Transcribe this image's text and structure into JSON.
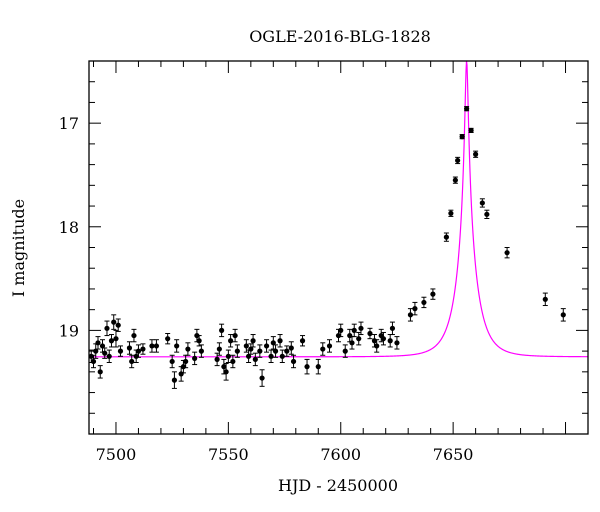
{
  "chart_data": {
    "type": "scatter",
    "title": "OGLE-2016-BLG-1828",
    "xlabel": "HJD - 2450000",
    "ylabel": "I magnitude",
    "xlim": [
      7488,
      7710
    ],
    "ylim": [
      20.0,
      16.4
    ],
    "y_inverted": true,
    "grid": false,
    "x_ticks": [
      7500,
      7550,
      7600,
      7650
    ],
    "y_ticks": [
      17,
      18,
      19
    ],
    "colors": {
      "points": "#000000",
      "model": "#ff00ff"
    },
    "series": [
      {
        "name": "",
        "points": [
          {
            "x": 7489,
            "y": 19.25,
            "err": 0.06
          },
          {
            "x": 7490,
            "y": 19.3,
            "err": 0.06
          },
          {
            "x": 7491,
            "y": 19.2,
            "err": 0.07
          },
          {
            "x": 7492,
            "y": 19.12,
            "err": 0.06
          },
          {
            "x": 7493,
            "y": 19.4,
            "err": 0.06
          },
          {
            "x": 7494,
            "y": 19.15,
            "err": 0.06
          },
          {
            "x": 7495,
            "y": 19.22,
            "err": 0.05
          },
          {
            "x": 7496,
            "y": 18.98,
            "err": 0.07
          },
          {
            "x": 7497,
            "y": 19.25,
            "err": 0.06
          },
          {
            "x": 7498,
            "y": 19.1,
            "err": 0.06
          },
          {
            "x": 7499,
            "y": 18.92,
            "err": 0.07
          },
          {
            "x": 7500,
            "y": 19.08,
            "err": 0.08
          },
          {
            "x": 7501,
            "y": 18.95,
            "err": 0.06
          },
          {
            "x": 7502,
            "y": 19.2,
            "err": 0.05
          },
          {
            "x": 7506,
            "y": 19.17,
            "err": 0.06
          },
          {
            "x": 7507,
            "y": 19.3,
            "err": 0.06
          },
          {
            "x": 7508,
            "y": 19.05,
            "err": 0.06
          },
          {
            "x": 7509,
            "y": 19.25,
            "err": 0.06
          },
          {
            "x": 7510,
            "y": 19.2,
            "err": 0.06
          },
          {
            "x": 7512,
            "y": 19.18,
            "err": 0.05
          },
          {
            "x": 7516,
            "y": 19.15,
            "err": 0.06
          },
          {
            "x": 7518,
            "y": 19.15,
            "err": 0.06
          },
          {
            "x": 7523,
            "y": 19.08,
            "err": 0.05
          },
          {
            "x": 7525,
            "y": 19.3,
            "err": 0.06
          },
          {
            "x": 7526,
            "y": 19.48,
            "err": 0.08
          },
          {
            "x": 7527,
            "y": 19.15,
            "err": 0.06
          },
          {
            "x": 7529,
            "y": 19.42,
            "err": 0.07
          },
          {
            "x": 7530,
            "y": 19.35,
            "err": 0.06
          },
          {
            "x": 7531,
            "y": 19.3,
            "err": 0.06
          },
          {
            "x": 7532,
            "y": 19.18,
            "err": 0.06
          },
          {
            "x": 7535,
            "y": 19.27,
            "err": 0.06
          },
          {
            "x": 7536,
            "y": 19.05,
            "err": 0.06
          },
          {
            "x": 7537,
            "y": 19.1,
            "err": 0.05
          },
          {
            "x": 7538,
            "y": 19.2,
            "err": 0.06
          },
          {
            "x": 7545,
            "y": 19.28,
            "err": 0.06
          },
          {
            "x": 7546,
            "y": 19.18,
            "err": 0.06
          },
          {
            "x": 7547,
            "y": 19.0,
            "err": 0.06
          },
          {
            "x": 7548,
            "y": 19.35,
            "err": 0.07
          },
          {
            "x": 7549,
            "y": 19.4,
            "err": 0.08
          },
          {
            "x": 7550,
            "y": 19.25,
            "err": 0.06
          },
          {
            "x": 7551,
            "y": 19.1,
            "err": 0.06
          },
          {
            "x": 7552,
            "y": 19.3,
            "err": 0.06
          },
          {
            "x": 7553,
            "y": 19.05,
            "err": 0.06
          },
          {
            "x": 7554,
            "y": 19.2,
            "err": 0.06
          },
          {
            "x": 7558,
            "y": 19.15,
            "err": 0.06
          },
          {
            "x": 7559,
            "y": 19.25,
            "err": 0.06
          },
          {
            "x": 7560,
            "y": 19.18,
            "err": 0.05
          },
          {
            "x": 7561,
            "y": 19.1,
            "err": 0.06
          },
          {
            "x": 7562,
            "y": 19.28,
            "err": 0.06
          },
          {
            "x": 7564,
            "y": 19.2,
            "err": 0.06
          },
          {
            "x": 7565,
            "y": 19.46,
            "err": 0.08
          },
          {
            "x": 7567,
            "y": 19.15,
            "err": 0.06
          },
          {
            "x": 7569,
            "y": 19.25,
            "err": 0.06
          },
          {
            "x": 7570,
            "y": 19.12,
            "err": 0.06
          },
          {
            "x": 7571,
            "y": 19.2,
            "err": 0.06
          },
          {
            "x": 7573,
            "y": 19.1,
            "err": 0.06
          },
          {
            "x": 7574,
            "y": 19.25,
            "err": 0.06
          },
          {
            "x": 7576,
            "y": 19.2,
            "err": 0.05
          },
          {
            "x": 7578,
            "y": 19.17,
            "err": 0.06
          },
          {
            "x": 7579,
            "y": 19.3,
            "err": 0.06
          },
          {
            "x": 7583,
            "y": 19.1,
            "err": 0.05
          },
          {
            "x": 7585,
            "y": 19.35,
            "err": 0.07
          },
          {
            "x": 7590,
            "y": 19.35,
            "err": 0.07
          },
          {
            "x": 7592,
            "y": 19.18,
            "err": 0.06
          },
          {
            "x": 7595,
            "y": 19.15,
            "err": 0.06
          },
          {
            "x": 7599,
            "y": 19.05,
            "err": 0.06
          },
          {
            "x": 7600,
            "y": 19.0,
            "err": 0.06
          },
          {
            "x": 7602,
            "y": 19.2,
            "err": 0.06
          },
          {
            "x": 7604,
            "y": 19.05,
            "err": 0.06
          },
          {
            "x": 7605,
            "y": 19.12,
            "err": 0.06
          },
          {
            "x": 7606,
            "y": 19.0,
            "err": 0.06
          },
          {
            "x": 7608,
            "y": 19.08,
            "err": 0.06
          },
          {
            "x": 7609,
            "y": 18.98,
            "err": 0.06
          },
          {
            "x": 7613,
            "y": 19.03,
            "err": 0.05
          },
          {
            "x": 7615,
            "y": 19.1,
            "err": 0.06
          },
          {
            "x": 7616,
            "y": 19.15,
            "err": 0.06
          },
          {
            "x": 7618,
            "y": 19.05,
            "err": 0.06
          },
          {
            "x": 7619,
            "y": 19.08,
            "err": 0.06
          },
          {
            "x": 7622,
            "y": 19.1,
            "err": 0.06
          },
          {
            "x": 7623,
            "y": 18.98,
            "err": 0.06
          },
          {
            "x": 7625,
            "y": 19.12,
            "err": 0.06
          },
          {
            "x": 7631,
            "y": 18.85,
            "err": 0.06
          },
          {
            "x": 7633,
            "y": 18.79,
            "err": 0.06
          },
          {
            "x": 7637,
            "y": 18.73,
            "err": 0.05
          },
          {
            "x": 7641,
            "y": 18.65,
            "err": 0.05
          },
          {
            "x": 7647,
            "y": 18.1,
            "err": 0.04
          },
          {
            "x": 7649,
            "y": 17.87,
            "err": 0.03
          },
          {
            "x": 7651,
            "y": 17.55,
            "err": 0.03
          },
          {
            "x": 7652,
            "y": 17.36,
            "err": 0.03
          },
          {
            "x": 7654,
            "y": 17.13,
            "err": 0.02
          },
          {
            "x": 7656,
            "y": 16.86,
            "err": 0.02
          },
          {
            "x": 7658,
            "y": 17.07,
            "err": 0.02
          },
          {
            "x": 7660,
            "y": 17.3,
            "err": 0.03
          },
          {
            "x": 7663,
            "y": 17.77,
            "err": 0.04
          },
          {
            "x": 7665,
            "y": 17.88,
            "err": 0.04
          },
          {
            "x": 7674,
            "y": 18.25,
            "err": 0.05
          },
          {
            "x": 7691,
            "y": 18.7,
            "err": 0.06
          },
          {
            "x": 7699,
            "y": 18.85,
            "err": 0.06
          }
        ]
      }
    ],
    "model_curve": {
      "type": "line",
      "t0": 7656.0,
      "u0": 0.072,
      "tE": 8.3,
      "m_base": 19.255
    }
  }
}
